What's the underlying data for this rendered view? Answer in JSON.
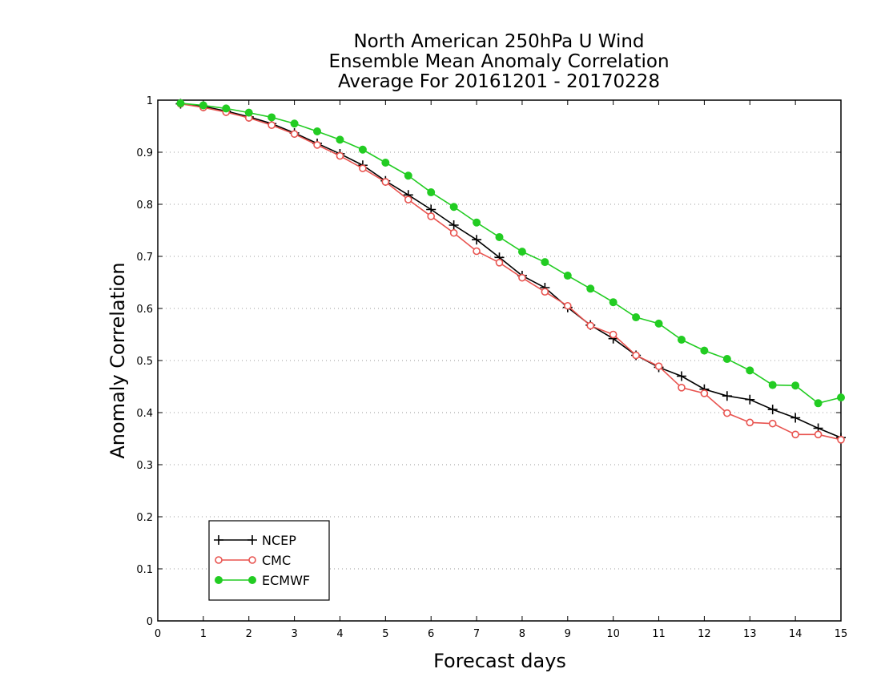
{
  "chart_data": {
    "type": "line",
    "title": [
      "North American 250hPa U Wind",
      "Ensemble Mean Anomaly Correlation",
      "Average For 20161201 - 20170228"
    ],
    "xlabel": "Forecast days",
    "ylabel": "Anomaly Correlation",
    "xlim": [
      0,
      15
    ],
    "ylim": [
      0,
      1
    ],
    "xticks": [
      "0",
      "1",
      "2",
      "3",
      "4",
      "5",
      "6",
      "7",
      "8",
      "9",
      "10",
      "11",
      "12",
      "13",
      "14",
      "15"
    ],
    "yticks": [
      "0",
      "0.1",
      "0.2",
      "0.3",
      "0.4",
      "0.5",
      "0.6",
      "0.7",
      "0.8",
      "0.9",
      "1"
    ],
    "grid": "horizontal dotted",
    "legend_position": "bottom-left",
    "x": [
      0.5,
      1,
      1.5,
      2,
      2.5,
      3,
      3.5,
      4,
      4.5,
      5,
      5.5,
      6,
      6.5,
      7,
      7.5,
      8,
      8.5,
      9,
      9.5,
      10,
      10.5,
      11,
      11.5,
      12,
      12.5,
      13,
      13.5,
      14,
      14.5,
      15
    ],
    "series": [
      {
        "name": "NCEP",
        "color": "#000000",
        "marker": "plus",
        "values": [
          0.993,
          0.988,
          0.979,
          0.968,
          0.955,
          0.937,
          0.917,
          0.897,
          0.875,
          0.845,
          0.818,
          0.79,
          0.76,
          0.732,
          0.698,
          0.663,
          0.64,
          0.602,
          0.568,
          0.542,
          0.51,
          0.487,
          0.47,
          0.445,
          0.432,
          0.425,
          0.406,
          0.39,
          0.37,
          0.352
        ]
      },
      {
        "name": "CMC",
        "color": "#e8534f",
        "marker": "open-circle",
        "values": [
          0.993,
          0.986,
          0.977,
          0.966,
          0.952,
          0.935,
          0.914,
          0.893,
          0.869,
          0.843,
          0.809,
          0.777,
          0.745,
          0.71,
          0.688,
          0.659,
          0.632,
          0.605,
          0.567,
          0.55,
          0.51,
          0.489,
          0.448,
          0.437,
          0.399,
          0.381,
          0.379,
          0.358,
          0.358,
          0.348
        ]
      },
      {
        "name": "ECMWF",
        "color": "#22cc22",
        "marker": "filled-circle",
        "values": [
          0.994,
          0.99,
          0.984,
          0.976,
          0.967,
          0.955,
          0.94,
          0.924,
          0.905,
          0.88,
          0.855,
          0.823,
          0.795,
          0.765,
          0.737,
          0.709,
          0.689,
          0.663,
          0.638,
          0.612,
          0.583,
          0.571,
          0.54,
          0.519,
          0.503,
          0.481,
          0.453,
          0.452,
          0.418,
          0.429
        ]
      }
    ]
  }
}
